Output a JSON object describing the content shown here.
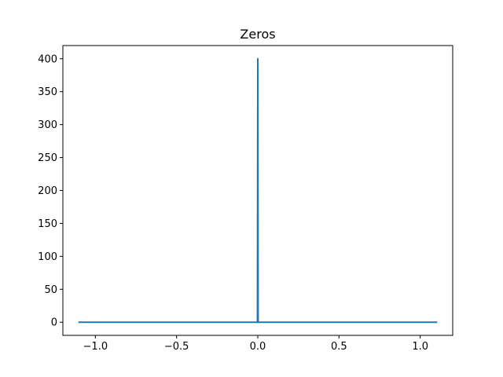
{
  "chart_data": {
    "type": "line",
    "title": "Zeros",
    "xlabel": "",
    "ylabel": "",
    "xlim": [
      -1.2,
      1.2
    ],
    "ylim": [
      -20,
      420
    ],
    "x_ticks": [
      -1.0,
      -0.5,
      0.0,
      0.5,
      1.0
    ],
    "x_tick_labels": [
      "−1.0",
      "−0.5",
      "0.0",
      "0.5",
      "1.0"
    ],
    "y_ticks": [
      0,
      50,
      100,
      150,
      200,
      250,
      300,
      350,
      400
    ],
    "y_tick_labels": [
      "0",
      "50",
      "100",
      "150",
      "200",
      "250",
      "300",
      "350",
      "400"
    ],
    "grid": false,
    "series": [
      {
        "color": "#1f77b4",
        "x": [
          -1.1,
          -0.004,
          -0.002,
          0.0,
          0.002,
          0.004,
          1.1
        ],
        "y": [
          0,
          0,
          0,
          400,
          0,
          0,
          0
        ]
      }
    ]
  }
}
